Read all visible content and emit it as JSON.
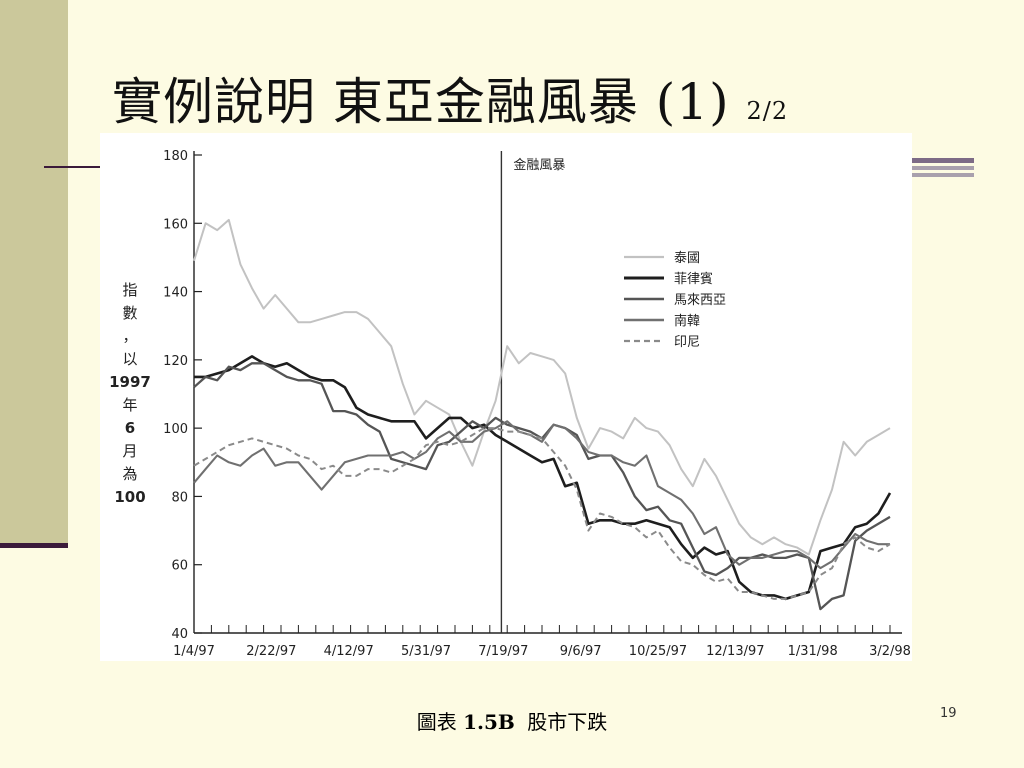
{
  "slide": {
    "title_main": "實例說明 東亞金融風暴 (1)",
    "title_sub": "2/2",
    "caption_prefix": "圖表",
    "caption_number": "1.5B",
    "caption_text": "股市下跌",
    "page_number": "19"
  },
  "chart_data": {
    "type": "line",
    "ylabel_chars": [
      "指",
      "數",
      "，",
      "以",
      "1997",
      "年",
      "6",
      "月",
      "為",
      "100"
    ],
    "ylim": [
      40,
      180
    ],
    "yticks": [
      40,
      60,
      80,
      100,
      120,
      140,
      160,
      180
    ],
    "xtick_labels": [
      "1/4/97",
      "2/22/97",
      "4/12/97",
      "5/31/97",
      "7/19/97",
      "9/6/97",
      "10/25/97",
      "12/13/97",
      "1/31/98",
      "3/2/98"
    ],
    "num_weeks": 61,
    "event_line": {
      "week": 26.5,
      "label": "金融風暴"
    },
    "grid": false,
    "legend_position": "top-right",
    "series": [
      {
        "name": "泰國",
        "color": "#c2c2c2",
        "dash": "",
        "width": 2,
        "values": [
          149,
          160,
          158,
          161,
          148,
          141,
          135,
          139,
          135,
          131,
          131,
          132,
          133,
          134,
          134,
          132,
          128,
          124,
          113,
          104,
          108,
          106,
          104,
          96,
          89,
          99,
          108,
          124,
          119,
          122,
          121,
          120,
          116,
          103,
          94,
          100,
          99,
          97,
          103,
          100,
          99,
          95,
          88,
          83,
          91,
          86,
          79,
          72,
          68,
          66,
          68,
          66,
          65,
          63,
          73,
          82,
          96,
          92,
          96,
          98,
          100
        ]
      },
      {
        "name": "菲律賓",
        "color": "#1e1e1e",
        "dash": "",
        "width": 2.6,
        "values": [
          115,
          115,
          116,
          117,
          119,
          121,
          119,
          118,
          119,
          117,
          115,
          114,
          114,
          112,
          106,
          104,
          103,
          102,
          102,
          102,
          97,
          100,
          103,
          103,
          100,
          101,
          98,
          96,
          94,
          92,
          90,
          91,
          83,
          84,
          72,
          73,
          73,
          72,
          72,
          73,
          72,
          71,
          66,
          62,
          65,
          63,
          64,
          55,
          52,
          51,
          51,
          50,
          51,
          52,
          64,
          65,
          66,
          71,
          72,
          75,
          81
        ]
      },
      {
        "name": "馬來西亞",
        "color": "#555555",
        "dash": "",
        "width": 2.3,
        "values": [
          112,
          115,
          114,
          118,
          117,
          119,
          119,
          117,
          115,
          114,
          114,
          113,
          105,
          105,
          104,
          101,
          99,
          91,
          90,
          89,
          88,
          95,
          96,
          99,
          102,
          100,
          103,
          101,
          100,
          99,
          97,
          101,
          100,
          98,
          91,
          92,
          92,
          87,
          80,
          76,
          77,
          73,
          72,
          65,
          58,
          57,
          59,
          62,
          62,
          63,
          62,
          62,
          63,
          62,
          47,
          50,
          51,
          67,
          70,
          72,
          74
        ]
      },
      {
        "name": "南韓",
        "color": "#707070",
        "dash": "",
        "width": 2.1,
        "values": [
          84,
          88,
          92,
          90,
          89,
          92,
          94,
          89,
          90,
          90,
          86,
          82,
          86,
          90,
          91,
          92,
          92,
          92,
          93,
          91,
          93,
          97,
          99,
          96,
          96,
          99,
          100,
          102,
          99,
          98,
          96,
          101,
          100,
          97,
          93,
          92,
          92,
          90,
          89,
          92,
          83,
          81,
          79,
          75,
          69,
          71,
          63,
          60,
          62,
          62,
          63,
          64,
          64,
          62,
          59,
          61,
          65,
          69,
          67,
          66,
          66
        ]
      },
      {
        "name": "印尼",
        "color": "#8a8a8a",
        "dash": "6,4",
        "width": 2,
        "values": [
          89,
          91,
          93,
          95,
          96,
          97,
          96,
          95,
          94,
          92,
          91,
          88,
          89,
          86,
          86,
          88,
          88,
          87,
          89,
          91,
          95,
          96,
          95,
          96,
          98,
          100,
          100,
          99,
          99,
          98,
          97,
          93,
          89,
          82,
          70,
          75,
          74,
          72,
          71,
          68,
          70,
          65,
          61,
          60,
          57,
          55,
          56,
          52,
          52,
          51,
          50,
          50,
          51,
          52,
          57,
          59,
          66,
          68,
          65,
          64,
          66
        ]
      }
    ]
  }
}
